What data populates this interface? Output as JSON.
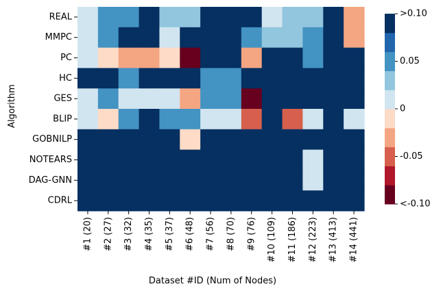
{
  "chart_data": {
    "type": "heatmap",
    "title": "",
    "xlabel": "Dataset #ID (Num of Nodes)",
    "ylabel": "Algorithm",
    "x_categories": [
      "#1 (20)",
      "#2 (27)",
      "#3 (32)",
      "#4 (35)",
      "#5 (37)",
      "#6 (48)",
      "#7 (56)",
      "#8 (70)",
      "#9 (76)",
      "#10 (109)",
      "#11 (186)",
      "#12 (223)",
      "#13 (413)",
      "#14 (441)"
    ],
    "y_categories": [
      "REAL",
      "MMPC",
      "PC",
      "HC",
      "GES",
      "BLIP",
      "GOBNILP",
      "NOTEARS",
      "DAG-GNN",
      "CDRL"
    ],
    "values": [
      [
        0.01,
        0.04,
        0.06,
        0.08,
        0.03,
        0.03,
        0.11,
        0.08,
        0.08,
        0.01,
        0.03,
        0.03,
        0.11,
        -0.04
      ],
      [
        0.01,
        0.06,
        0.08,
        0.11,
        0.01,
        0.11,
        0.11,
        0.08,
        0.06,
        0.03,
        0.03,
        0.06,
        0.11,
        -0.04
      ],
      [
        0.01,
        -0.01,
        -0.04,
        -0.04,
        -0.01,
        -0.11,
        0.08,
        0.11,
        -0.04,
        0.11,
        0.11,
        0.06,
        0.11,
        0.11
      ],
      [
        0.08,
        0.11,
        0.06,
        0.11,
        0.11,
        0.08,
        0.06,
        0.06,
        0.11,
        0.11,
        0.11,
        0.11,
        0.11,
        0.11
      ],
      [
        0.01,
        0.04,
        0.01,
        0.01,
        0.01,
        -0.04,
        0.06,
        0.06,
        -0.11,
        0.11,
        0.11,
        0.11,
        0.11,
        0.11
      ],
      [
        0.01,
        -0.01,
        0.04,
        0.11,
        0.04,
        0.06,
        0.01,
        0.01,
        -0.06,
        0.11,
        -0.06,
        0.01,
        0.11,
        0.01
      ],
      [
        0.11,
        0.11,
        0.11,
        0.11,
        0.11,
        -0.01,
        0.08,
        0.08,
        0.11,
        0.11,
        0.11,
        0.11,
        0.11,
        0.11
      ],
      [
        0.11,
        0.11,
        0.11,
        0.11,
        0.11,
        0.11,
        0.11,
        0.11,
        0.11,
        0.11,
        0.11,
        0.01,
        0.11,
        0.11
      ],
      [
        0.11,
        0.11,
        0.11,
        0.11,
        0.11,
        0.11,
        0.11,
        0.11,
        0.11,
        0.11,
        0.11,
        0.01,
        0.11,
        0.11
      ],
      [
        0.11,
        0.11,
        0.11,
        0.11,
        0.11,
        0.11,
        0.11,
        0.11,
        0.11,
        0.11,
        0.11,
        0.11,
        0.11,
        0.11
      ]
    ],
    "colorbar": {
      "range": [
        -0.1,
        0.1
      ],
      "ticks": [
        {
          "value": 0.1,
          "label": ">0.10"
        },
        {
          "value": 0.05,
          "label": "0.05"
        },
        {
          "value": 0,
          "label": "0"
        },
        {
          "value": -0.05,
          "label": "-0.05"
        },
        {
          "value": -0.1,
          "label": "<-0.10"
        }
      ],
      "colors": [
        "#67001f",
        "#b2182b",
        "#d6604d",
        "#f4a582",
        "#fddbc7",
        "#d1e5f0",
        "#92c5de",
        "#4393c3",
        "#2166ac",
        "#053061"
      ]
    },
    "grid": false,
    "legend": "right"
  }
}
